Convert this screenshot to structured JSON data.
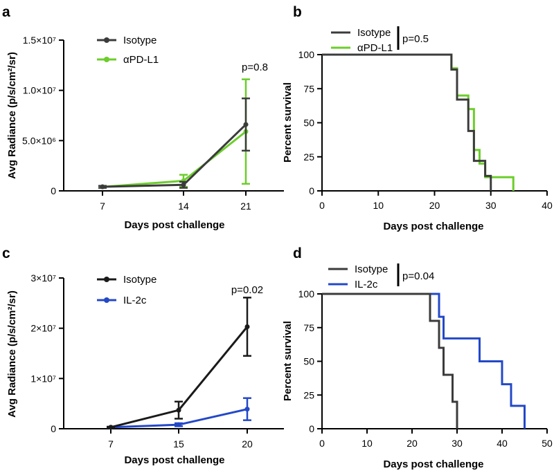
{
  "chart_data": [
    {
      "panel": "a",
      "type": "line",
      "xlabel": "Days post  challenge",
      "ylabel": "Avg Radiance (p/s/cm²/sr)",
      "ylim": [
        0,
        15000000
      ],
      "categories": [
        "7",
        "14",
        "21"
      ],
      "y_tick_labels": [
        {
          "value": 0,
          "label": "0"
        },
        {
          "value": 5000000,
          "label": "5.0×10⁶"
        },
        {
          "value": 10000000,
          "label": "1.0×10⁷"
        },
        {
          "value": 15000000,
          "label": "1.5×10⁷"
        }
      ],
      "series": [
        {
          "name": "Isotype",
          "color": "#3b3b3b",
          "values": [
            400000,
            600000,
            6600000
          ],
          "errors": [
            100000,
            300000,
            2600000
          ]
        },
        {
          "name": "αPD-L1",
          "color": "#6ccd2b",
          "values": [
            400000,
            1000000,
            5900000
          ],
          "errors": [
            100000,
            600000,
            5200000
          ]
        }
      ],
      "annotations": [
        {
          "text": "p=0.8",
          "category": "21"
        }
      ]
    },
    {
      "panel": "b",
      "type": "line",
      "xlabel": "Days post challenge",
      "ylabel": "Percent survival",
      "xlim": [
        0,
        40
      ],
      "ylim": [
        0,
        100
      ],
      "x_ticks": [
        0,
        10,
        20,
        30,
        40
      ],
      "y_ticks": [
        0,
        25,
        50,
        75,
        100
      ],
      "series": [
        {
          "name": "Isotype",
          "color": "#3b3b3b",
          "x": [
            0,
            23,
            24,
            25,
            26,
            27,
            29,
            30
          ],
          "values": [
            100,
            89,
            67,
            67,
            44,
            22,
            11,
            0
          ]
        },
        {
          "name": "αPD-L1",
          "color": "#6ccd2b",
          "x": [
            0,
            23,
            24,
            26,
            27,
            28,
            29,
            31,
            34
          ],
          "values": [
            100,
            90,
            70,
            60,
            30,
            20,
            10,
            10,
            0
          ]
        }
      ],
      "annotations": [
        {
          "text": "p=0.5"
        }
      ]
    },
    {
      "panel": "c",
      "type": "line",
      "xlabel": "Days post challenge",
      "ylabel": "Avg Radiance (p/s/cm²/sr)",
      "ylim": [
        0,
        30000000
      ],
      "categories": [
        "7",
        "15",
        "20"
      ],
      "y_tick_labels": [
        {
          "value": 0,
          "label": "0"
        },
        {
          "value": 10000000,
          "label": "1×10⁷"
        },
        {
          "value": 20000000,
          "label": "2×10⁷"
        },
        {
          "value": 30000000,
          "label": "3×10⁷"
        }
      ],
      "series": [
        {
          "name": "Isotype",
          "color": "#1a1a1a",
          "values": [
            300000,
            3700000,
            20300000
          ],
          "errors": [
            100000,
            1700000,
            5800000
          ]
        },
        {
          "name": "IL-2c",
          "color": "#2348c8",
          "values": [
            300000,
            800000,
            3900000
          ],
          "errors": [
            100000,
            300000,
            2200000
          ]
        }
      ],
      "annotations": [
        {
          "text": "p=0.02",
          "category": "20"
        }
      ]
    },
    {
      "panel": "d",
      "type": "line",
      "xlabel": "Days post challenge",
      "ylabel": "Percent survival",
      "xlim": [
        0,
        50
      ],
      "ylim": [
        0,
        100
      ],
      "x_ticks": [
        0,
        10,
        20,
        30,
        40,
        50
      ],
      "y_ticks": [
        0,
        25,
        50,
        75,
        100
      ],
      "series": [
        {
          "name": "Isotype",
          "color": "#3b3b3b",
          "x": [
            0,
            24,
            26,
            27,
            28,
            29,
            30
          ],
          "values": [
            100,
            80,
            60,
            40,
            40,
            20,
            0
          ]
        },
        {
          "name": "IL-2c",
          "color": "#2348c8",
          "x": [
            0,
            26,
            27,
            28,
            35,
            40,
            42,
            45
          ],
          "values": [
            100,
            83,
            67,
            67,
            50,
            33,
            17,
            0
          ]
        }
      ],
      "annotations": [
        {
          "text": "p=0.04"
        }
      ]
    }
  ]
}
